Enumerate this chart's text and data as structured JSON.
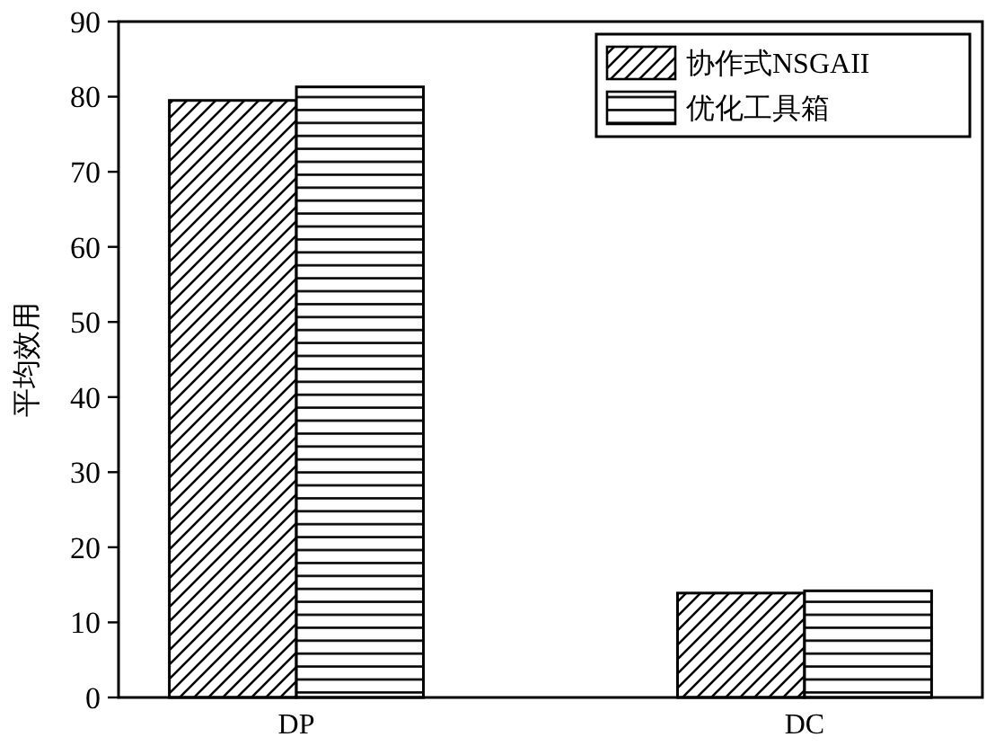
{
  "chart_data": {
    "type": "bar",
    "ylabel": "平均效用",
    "categories": [
      "DP",
      "DC"
    ],
    "series": [
      {
        "name": "协作式NSGAII",
        "color": "#000000",
        "values": [
          79.5,
          13.9
        ]
      },
      {
        "name": "优化工具箱",
        "color": "#000000",
        "values": [
          81.3,
          14.2
        ]
      }
    ],
    "ylim": [
      0,
      90
    ],
    "yticks": [
      0,
      10,
      20,
      30,
      40,
      50,
      60,
      70,
      80,
      90
    ],
    "grid": false,
    "legend": "top right"
  }
}
